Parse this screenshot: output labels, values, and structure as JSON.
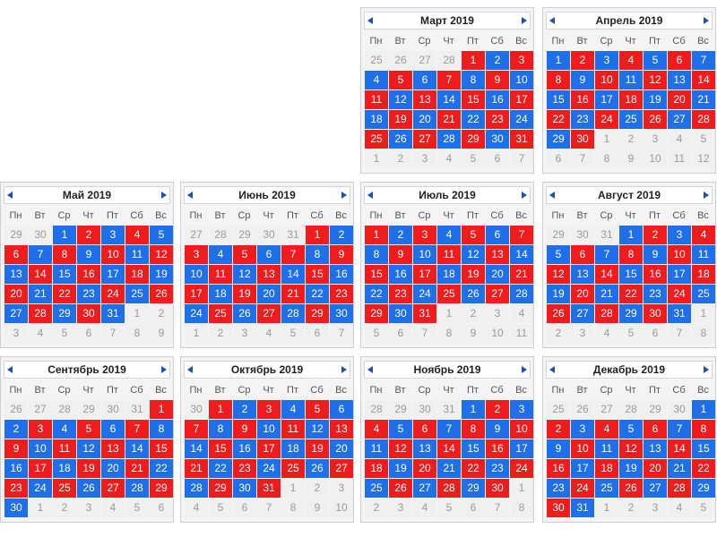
{
  "calendar": {
    "weekdays": [
      "Пн",
      "Вт",
      "Ср",
      "Чт",
      "Пт",
      "Сб",
      "Вс"
    ],
    "colors": {
      "blue": "#1e6fe8",
      "red": "#ee1c1c",
      "outside_text": "#9a9a9a"
    },
    "months": [
      {
        "title": "Март 2019",
        "year": 2019,
        "month": 3
      },
      {
        "title": "Апрель 2019",
        "year": 2019,
        "month": 4
      },
      {
        "title": "Май 2019",
        "year": 2019,
        "month": 5
      },
      {
        "title": "Июнь 2019",
        "year": 2019,
        "month": 6
      },
      {
        "title": "Июль 2019",
        "year": 2019,
        "month": 7
      },
      {
        "title": "Август 2019",
        "year": 2019,
        "month": 8
      },
      {
        "title": "Сентябрь 2019",
        "year": 2019,
        "month": 9
      },
      {
        "title": "Октябрь 2019",
        "year": 2019,
        "month": 10
      },
      {
        "title": "Ноябрь 2019",
        "year": 2019,
        "month": 11
      },
      {
        "title": "Декабрь 2019",
        "year": 2019,
        "month": 12
      }
    ],
    "red_days": {
      "3": [
        1,
        3,
        5,
        7,
        9,
        11,
        13,
        15,
        17,
        19,
        21,
        23,
        25,
        27,
        29,
        31
      ],
      "4": [
        2,
        4,
        6,
        8,
        10,
        12,
        14,
        16,
        18,
        20,
        22,
        24,
        26,
        28,
        30
      ],
      "5": [
        2,
        4,
        6,
        8,
        10,
        12,
        14,
        16,
        18,
        20,
        22,
        24,
        26,
        28,
        30
      ],
      "6": [
        1,
        3,
        5,
        7,
        9,
        11,
        13,
        15,
        17,
        19,
        21,
        23,
        25,
        27,
        29
      ],
      "7": [
        1,
        3,
        5,
        7,
        9,
        11,
        13,
        15,
        17,
        19,
        21,
        23,
        25,
        27,
        29,
        31
      ],
      "8": [
        2,
        4,
        6,
        8,
        10,
        12,
        14,
        16,
        18,
        20,
        22,
        24,
        26,
        28,
        30
      ],
      "9": [
        1,
        3,
        5,
        7,
        9,
        11,
        13,
        15,
        17,
        19,
        21,
        23,
        25,
        27,
        29
      ],
      "10": [
        1,
        3,
        5,
        7,
        9,
        11,
        13,
        15,
        17,
        19,
        21,
        23,
        25,
        27,
        29,
        31
      ],
      "11": [
        2,
        4,
        6,
        8,
        10,
        12,
        14,
        16,
        18,
        20,
        22,
        24,
        26,
        28,
        30
      ],
      "12": [
        2,
        4,
        6,
        8,
        10,
        12,
        14,
        16,
        18,
        20,
        22,
        24,
        26,
        28,
        30
      ]
    }
  }
}
